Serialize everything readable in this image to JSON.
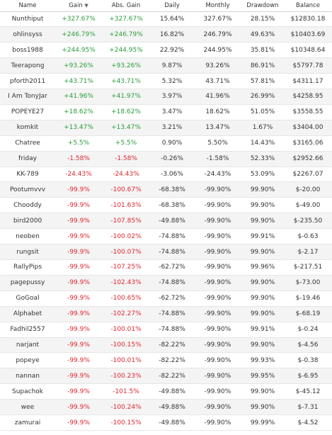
{
  "headers": {
    "name": "Name",
    "gain": "Gain",
    "abs_gain": "Abs. Gain",
    "daily": "Daily",
    "monthly": "Monthly",
    "drawdown": "Drawdown",
    "balance": "Balance",
    "sort_indicator": "▼"
  },
  "colors": {
    "positive": "#2a9d3a",
    "negative": "#e0262d"
  },
  "rows": [
    {
      "name": "Nunthiput",
      "gain": "+327.67%",
      "abs_gain": "+327.67%",
      "daily": "15.64%",
      "monthly": "327.67%",
      "drawdown": "28.15%",
      "balance": "$12830.18",
      "sign": "pos"
    },
    {
      "name": "ohlinsyss",
      "gain": "+246.79%",
      "abs_gain": "+246.79%",
      "daily": "16.82%",
      "monthly": "246.79%",
      "drawdown": "49.63%",
      "balance": "$10403.69",
      "sign": "pos"
    },
    {
      "name": "boss1988",
      "gain": "+244.95%",
      "abs_gain": "+244.95%",
      "daily": "22.92%",
      "monthly": "244.95%",
      "drawdown": "35.81%",
      "balance": "$10348.64",
      "sign": "pos"
    },
    {
      "name": "Teerapong",
      "gain": "+93.26%",
      "abs_gain": "+93.26%",
      "daily": "9.87%",
      "monthly": "93.26%",
      "drawdown": "86.91%",
      "balance": "$5797.78",
      "sign": "pos"
    },
    {
      "name": "pforth2011",
      "gain": "+43.71%",
      "abs_gain": "+43.71%",
      "daily": "5.32%",
      "monthly": "43.71%",
      "drawdown": "57.81%",
      "balance": "$4311.17",
      "sign": "pos"
    },
    {
      "name": "I Am TonyJar",
      "gain": "+41.96%",
      "abs_gain": "+41.97%",
      "daily": "3.97%",
      "monthly": "41.96%",
      "drawdown": "26.99%",
      "balance": "$4258.95",
      "sign": "pos"
    },
    {
      "name": "POPEYE27",
      "gain": "+18.62%",
      "abs_gain": "+18.62%",
      "daily": "3.47%",
      "monthly": "18.62%",
      "drawdown": "51.05%",
      "balance": "$3558.55",
      "sign": "pos"
    },
    {
      "name": "komkit",
      "gain": "+13.47%",
      "abs_gain": "+13.47%",
      "daily": "3.21%",
      "monthly": "13.47%",
      "drawdown": "1.67%",
      "balance": "$3404.00",
      "sign": "pos"
    },
    {
      "name": "Chatree",
      "gain": "+5.5%",
      "abs_gain": "+5.5%",
      "daily": "0.90%",
      "monthly": "5.50%",
      "drawdown": "14.43%",
      "balance": "$3165.06",
      "sign": "pos"
    },
    {
      "name": "friday",
      "gain": "-1.58%",
      "abs_gain": "-1.58%",
      "daily": "-0.26%",
      "monthly": "-1.58%",
      "drawdown": "52.33%",
      "balance": "$2952.66",
      "sign": "neg"
    },
    {
      "name": "KK-789",
      "gain": "-24.43%",
      "abs_gain": "-24.43%",
      "daily": "-3.06%",
      "monthly": "-24.43%",
      "drawdown": "53.09%",
      "balance": "$2267.07",
      "sign": "neg"
    },
    {
      "name": "Pootumvvv",
      "gain": "-99.9%",
      "abs_gain": "-100.67%",
      "daily": "-68.38%",
      "monthly": "-99.90%",
      "drawdown": "99.90%",
      "balance": "$-20.00",
      "sign": "neg"
    },
    {
      "name": "Chooddy",
      "gain": "-99.9%",
      "abs_gain": "-101.63%",
      "daily": "-68.38%",
      "monthly": "-99.90%",
      "drawdown": "99.90%",
      "balance": "$-49.00",
      "sign": "neg"
    },
    {
      "name": "bird2000",
      "gain": "-99.9%",
      "abs_gain": "-107.85%",
      "daily": "-49.88%",
      "monthly": "-99.90%",
      "drawdown": "99.90%",
      "balance": "$-235.50",
      "sign": "neg"
    },
    {
      "name": "neoben",
      "gain": "-99.9%",
      "abs_gain": "-100.02%",
      "daily": "-74.88%",
      "monthly": "-99.90%",
      "drawdown": "99.91%",
      "balance": "$-0.63",
      "sign": "neg"
    },
    {
      "name": "rungsit",
      "gain": "-99.9%",
      "abs_gain": "-100.07%",
      "daily": "-74.88%",
      "monthly": "-99.90%",
      "drawdown": "99.90%",
      "balance": "$-2.17",
      "sign": "neg"
    },
    {
      "name": "RallyPips",
      "gain": "-99.9%",
      "abs_gain": "-107.25%",
      "daily": "-62.72%",
      "monthly": "-99.90%",
      "drawdown": "99.96%",
      "balance": "$-217.51",
      "sign": "neg"
    },
    {
      "name": "pagepussy",
      "gain": "-99.9%",
      "abs_gain": "-102.43%",
      "daily": "-74.88%",
      "monthly": "-99.90%",
      "drawdown": "99.90%",
      "balance": "$-73.00",
      "sign": "neg"
    },
    {
      "name": "GoGoal",
      "gain": "-99.9%",
      "abs_gain": "-100.65%",
      "daily": "-62.72%",
      "monthly": "-99.90%",
      "drawdown": "99.90%",
      "balance": "$-19.46",
      "sign": "neg"
    },
    {
      "name": "Alphabet",
      "gain": "-99.9%",
      "abs_gain": "-102.27%",
      "daily": "-74.88%",
      "monthly": "-99.90%",
      "drawdown": "99.90%",
      "balance": "$-68.19",
      "sign": "neg"
    },
    {
      "name": "Fadhil2557",
      "gain": "-99.9%",
      "abs_gain": "-100.01%",
      "daily": "-74.88%",
      "monthly": "-99.90%",
      "drawdown": "99.91%",
      "balance": "$-0.24",
      "sign": "neg"
    },
    {
      "name": "narjant",
      "gain": "-99.9%",
      "abs_gain": "-100.15%",
      "daily": "-82.22%",
      "monthly": "-99.90%",
      "drawdown": "99.90%",
      "balance": "$-4.56",
      "sign": "neg"
    },
    {
      "name": "popeye",
      "gain": "-99.9%",
      "abs_gain": "-100.01%",
      "daily": "-82.22%",
      "monthly": "-99.90%",
      "drawdown": "99.93%",
      "balance": "$-0.38",
      "sign": "neg"
    },
    {
      "name": "nannan",
      "gain": "-99.9%",
      "abs_gain": "-100.23%",
      "daily": "-82.22%",
      "monthly": "-99.90%",
      "drawdown": "99.95%",
      "balance": "$-6.95",
      "sign": "neg"
    },
    {
      "name": "Supachok",
      "gain": "-99.9%",
      "abs_gain": "-101.5%",
      "daily": "-49.88%",
      "monthly": "-99.90%",
      "drawdown": "99.90%",
      "balance": "$-45.12",
      "sign": "neg"
    },
    {
      "name": "wee",
      "gain": "-99.9%",
      "abs_gain": "-100.24%",
      "daily": "-49.88%",
      "monthly": "-99.90%",
      "drawdown": "99.90%",
      "balance": "$-7.31",
      "sign": "neg"
    },
    {
      "name": "zamurai",
      "gain": "-99.9%",
      "abs_gain": "-100.15%",
      "daily": "-49.88%",
      "monthly": "-99.90%",
      "drawdown": "99.99%",
      "balance": "$-4.52",
      "sign": "neg"
    }
  ]
}
